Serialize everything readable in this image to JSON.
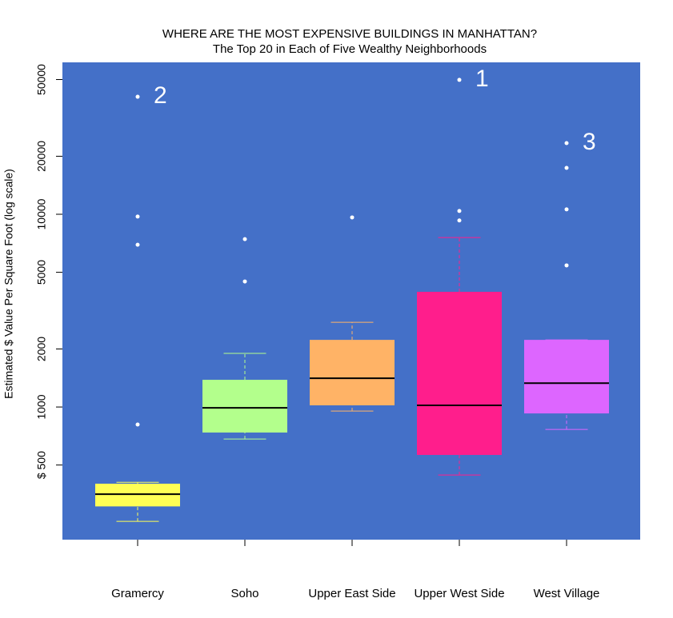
{
  "chart_data": {
    "type": "box",
    "title": "WHERE ARE THE MOST EXPENSIVE BUILDINGS IN MANHATTAN?",
    "subtitle": "The Top 20 in Each of Five Wealthy Neighborhoods",
    "y_label": "Estimated  $  Value Per Square Foot (log scale)",
    "log_y": true,
    "background": "#4470c8",
    "categories": [
      "Gramercy",
      "Soho",
      "Upper East Side",
      "Upper West Side",
      "West Village"
    ],
    "colors": [
      "#ffff55",
      "#b3ff8c",
      "#ffb366",
      "#ff1e8c",
      "#dd66ff"
    ],
    "boxes": [
      {
        "min": 255,
        "q1": 305,
        "median": 353,
        "q3": 400,
        "max": 407,
        "outliers": [
          811,
          6950,
          9730,
          40700
        ]
      },
      {
        "min": 682,
        "q1": 737,
        "median": 990,
        "q3": 1384,
        "max": 1897,
        "outliers": [
          4480,
          7430
        ]
      },
      {
        "min": 953,
        "q1": 1020,
        "median": 1410,
        "q3": 2230,
        "max": 2750,
        "outliers": [
          9630
        ]
      },
      {
        "min": 444,
        "q1": 564,
        "median": 1020,
        "q3": 3960,
        "max": 7570,
        "outliers": [
          9290,
          10400,
          49800
        ]
      },
      {
        "min": 765,
        "q1": 926,
        "median": 1330,
        "q3": 2230,
        "max": 2230,
        "outliers": [
          5430,
          10600,
          17400,
          23400
        ]
      }
    ],
    "annotations": [
      "2",
      "1",
      "3"
    ],
    "ylim": [
      205,
      61400
    ],
    "yticks": [
      {
        "value": 500,
        "label": "$ 500"
      },
      1000,
      2000,
      5000,
      10000,
      20000,
      50000
    ]
  }
}
